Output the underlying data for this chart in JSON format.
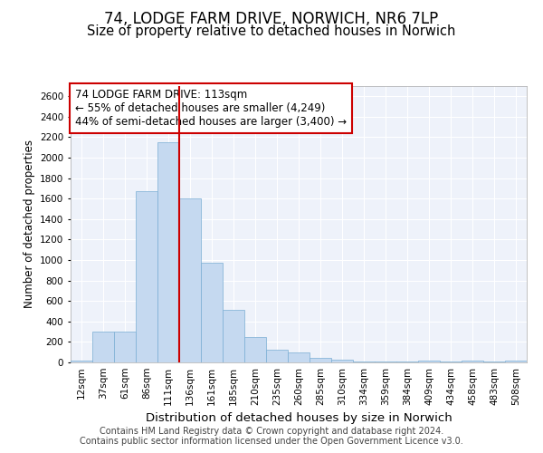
{
  "title1": "74, LODGE FARM DRIVE, NORWICH, NR6 7LP",
  "title2": "Size of property relative to detached houses in Norwich",
  "xlabel": "Distribution of detached houses by size in Norwich",
  "ylabel": "Number of detached properties",
  "bar_color": "#c5d9f0",
  "bar_edge_color": "#7aadd4",
  "annotation_box_color": "#cc0000",
  "vline_color": "#cc0000",
  "annotation_line1": "74 LODGE FARM DRIVE: 113sqm",
  "annotation_line2": "← 55% of detached houses are smaller (4,249)",
  "annotation_line3": "44% of semi-detached houses are larger (3,400) →",
  "footer1": "Contains HM Land Registry data © Crown copyright and database right 2024.",
  "footer2": "Contains public sector information licensed under the Open Government Licence v3.0.",
  "categories": [
    "12sqm",
    "37sqm",
    "61sqm",
    "86sqm",
    "111sqm",
    "136sqm",
    "161sqm",
    "185sqm",
    "210sqm",
    "235sqm",
    "260sqm",
    "285sqm",
    "310sqm",
    "334sqm",
    "359sqm",
    "384sqm",
    "409sqm",
    "434sqm",
    "458sqm",
    "483sqm",
    "508sqm"
  ],
  "values": [
    20,
    300,
    300,
    1670,
    2150,
    1600,
    975,
    510,
    250,
    120,
    100,
    45,
    30,
    10,
    5,
    5,
    20,
    5,
    20,
    5,
    20
  ],
  "ylim": [
    0,
    2700
  ],
  "yticks": [
    0,
    200,
    400,
    600,
    800,
    1000,
    1200,
    1400,
    1600,
    1800,
    2000,
    2200,
    2400,
    2600
  ],
  "bg_color": "#eef2fa",
  "grid_color": "#ffffff",
  "title1_fontsize": 12,
  "title2_fontsize": 10.5,
  "xlabel_fontsize": 9.5,
  "ylabel_fontsize": 8.5,
  "tick_fontsize": 7.5,
  "annotation_fontsize": 8.5,
  "footer_fontsize": 7
}
